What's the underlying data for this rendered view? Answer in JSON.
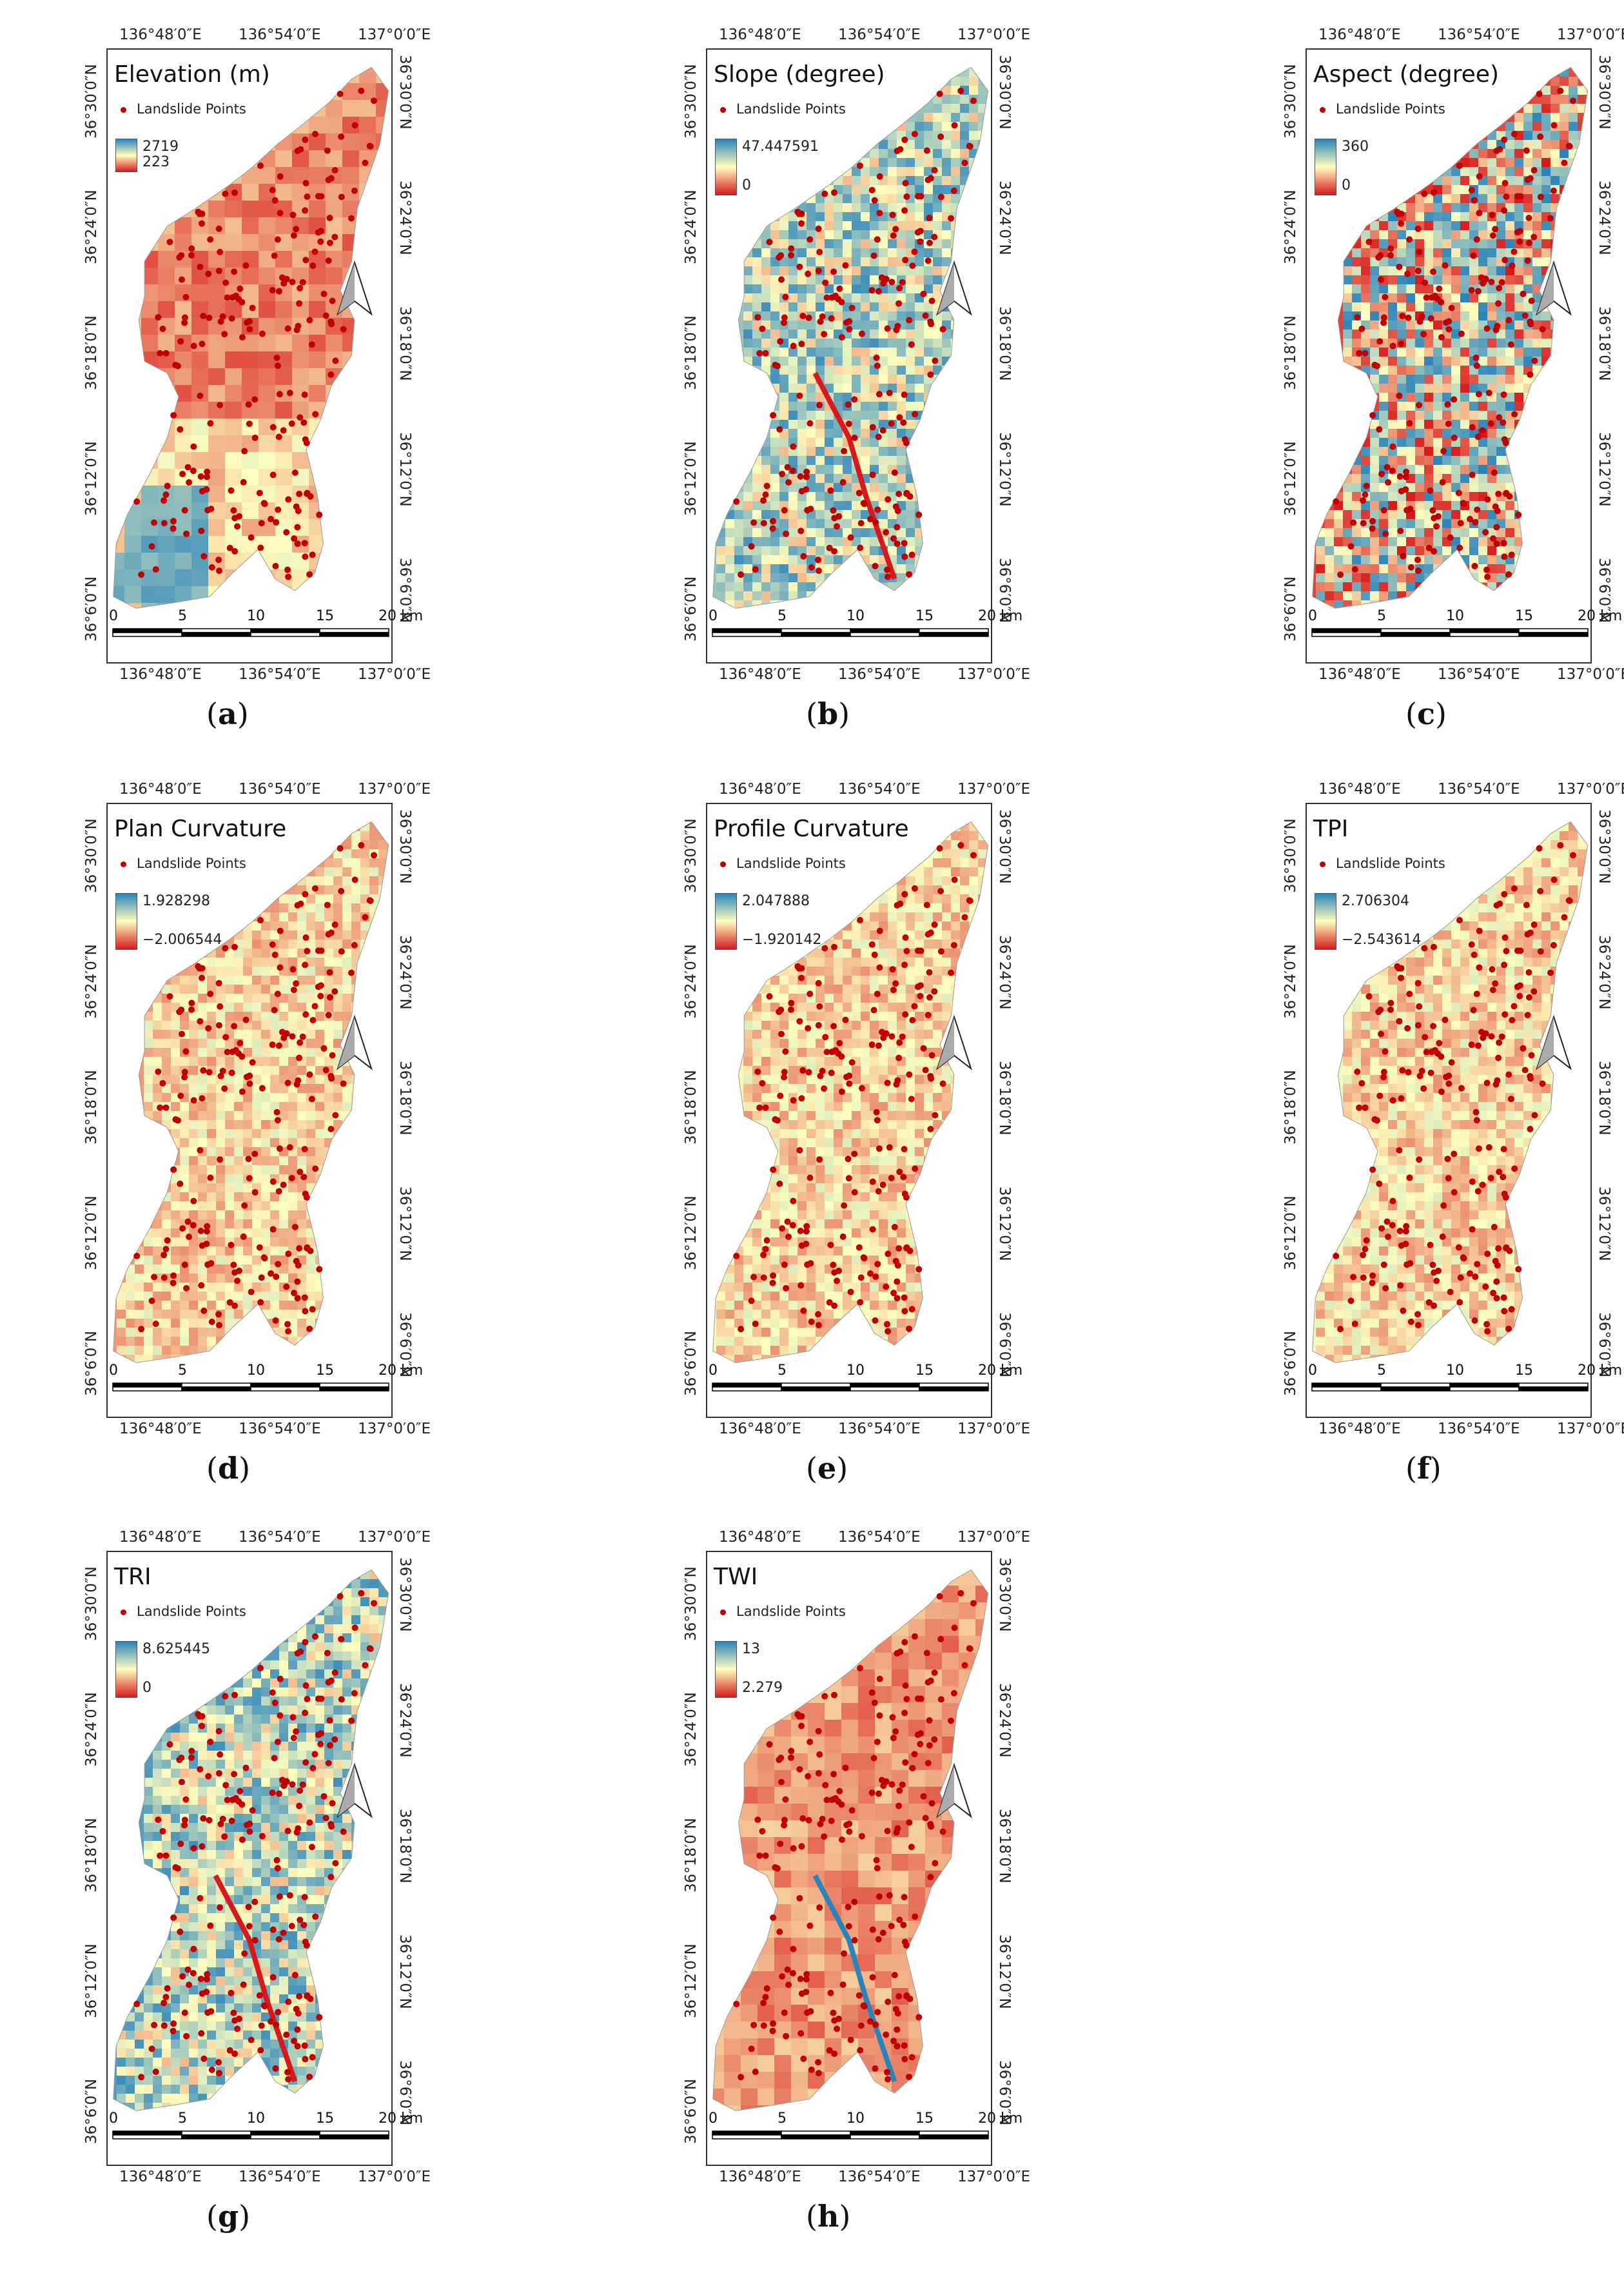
{
  "legend_points_label": "Landslide Points",
  "scale_bar": {
    "labels": [
      "0",
      "5",
      "10",
      "15",
      "20 km"
    ]
  },
  "lon_ticks": [
    "136°48′0″E",
    "136°54′0″E",
    "137°0′0″E"
  ],
  "lat_ticks": [
    "36°30′0″N",
    "36°24′0″N",
    "36°18′0″N",
    "36°12′0″N",
    "36°6′0″N"
  ],
  "colors": {
    "high": "#2b83ba",
    "mid": "#ffffbf",
    "low": "#d7191c",
    "points": "#c00000"
  },
  "panels": [
    {
      "letter": "a",
      "title": "Elevation (m)",
      "max": "2719",
      "min": "223"
    },
    {
      "letter": "b",
      "title": "Slope (degree)",
      "max": "47.447591",
      "min": "0"
    },
    {
      "letter": "c",
      "title": "Aspect (degree)",
      "max": "360",
      "min": "0"
    },
    {
      "letter": "d",
      "title": "Plan Curvature",
      "max": "1.928298",
      "min": "−2.006544"
    },
    {
      "letter": "e",
      "title": "Profile Curvature",
      "max": "2.047888",
      "min": "−1.920142"
    },
    {
      "letter": "f",
      "title": "TPI",
      "max": "2.706304",
      "min": "−2.543614"
    },
    {
      "letter": "g",
      "title": "TRI",
      "max": "8.625445",
      "min": "0"
    },
    {
      "letter": "h",
      "title": "TWI",
      "max": "13",
      "min": "2.279"
    }
  ]
}
